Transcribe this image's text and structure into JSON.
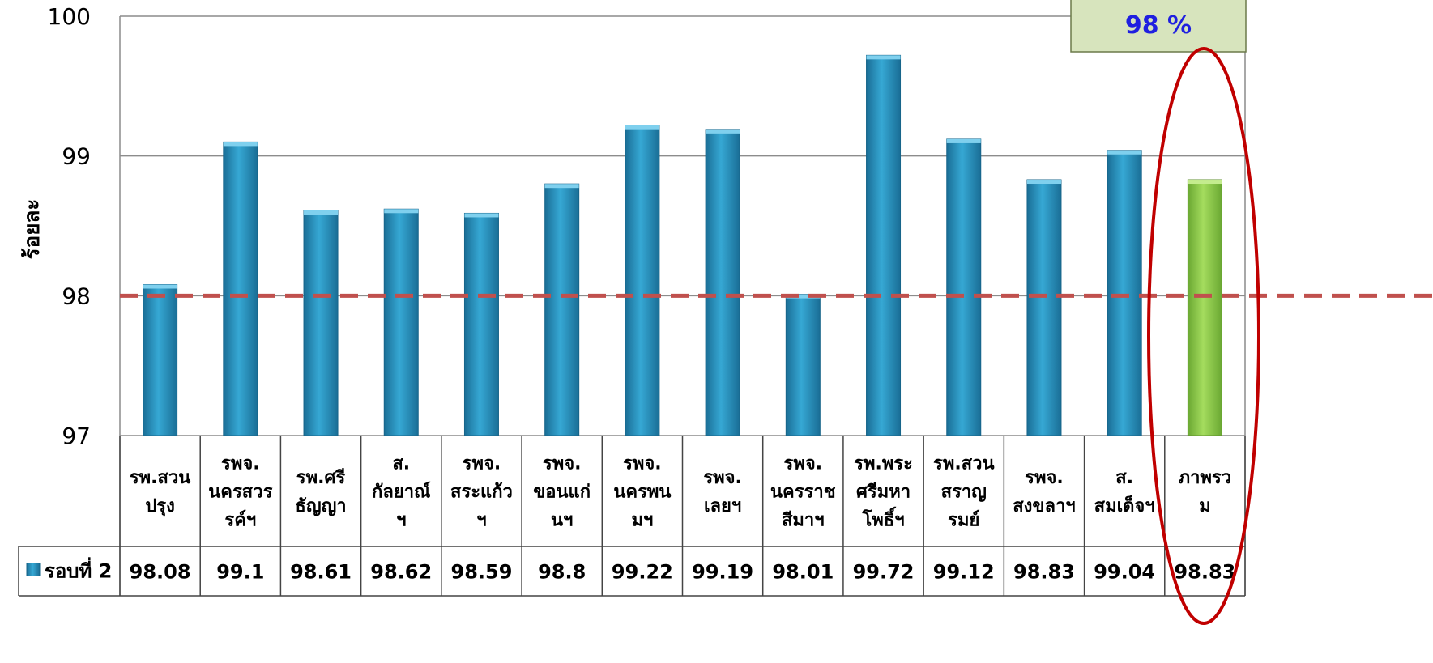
{
  "chart_data": {
    "type": "bar",
    "ylabel": "ร้อยละ",
    "ylim": [
      97,
      100
    ],
    "yticks": [
      97,
      98,
      99,
      100
    ],
    "grid": true,
    "categories": [
      [
        "รพ.สวน",
        "ปรุง"
      ],
      [
        "รพจ.",
        "นครสวร",
        "รค์ฯ"
      ],
      [
        "รพ.ศรี",
        "ธัญญา"
      ],
      [
        "ส.",
        "กัลยาณ์",
        "ฯ"
      ],
      [
        "รพจ.",
        "สระแก้ว",
        "ฯ"
      ],
      [
        "รพจ.",
        "ขอนแก่",
        "นฯ"
      ],
      [
        "รพจ.",
        "นครพน",
        "มฯ"
      ],
      [
        "รพจ.",
        "เลยฯ"
      ],
      [
        "รพจ.",
        "นครราช",
        "สีมาฯ"
      ],
      [
        "รพ.พระ",
        "ศรีมหา",
        "โพธิ์ฯ"
      ],
      [
        "รพ.สวน",
        "สราญ",
        "รมย์"
      ],
      [
        "รพจ.",
        "สงขลาฯ"
      ],
      [
        "ส.",
        "สมเด็จฯ"
      ],
      [
        "ภาพรว",
        "ม"
      ]
    ],
    "series": [
      {
        "name": "รอบที่ 2",
        "values": [
          98.08,
          99.1,
          98.61,
          98.62,
          98.59,
          98.8,
          99.22,
          99.19,
          98.01,
          99.72,
          99.12,
          98.83,
          99.04,
          98.83
        ],
        "value_labels": [
          "98.08",
          "99.1",
          "98.61",
          "98.62",
          "98.59",
          "98.8",
          "99.22",
          "99.19",
          "98.01",
          "99.72",
          "99.12",
          "98.83",
          "99.04",
          "98.83"
        ],
        "color": "#2592c0",
        "highlight_index": 13,
        "highlight_color": "#92d050"
      }
    ],
    "target": {
      "value": 98,
      "label": "98 %",
      "color": "#c0504d"
    },
    "annotation": {
      "circle_color": "#c00000",
      "target_box_fill": "#d7e4bd",
      "target_text_color": "#1f1fe0"
    }
  }
}
